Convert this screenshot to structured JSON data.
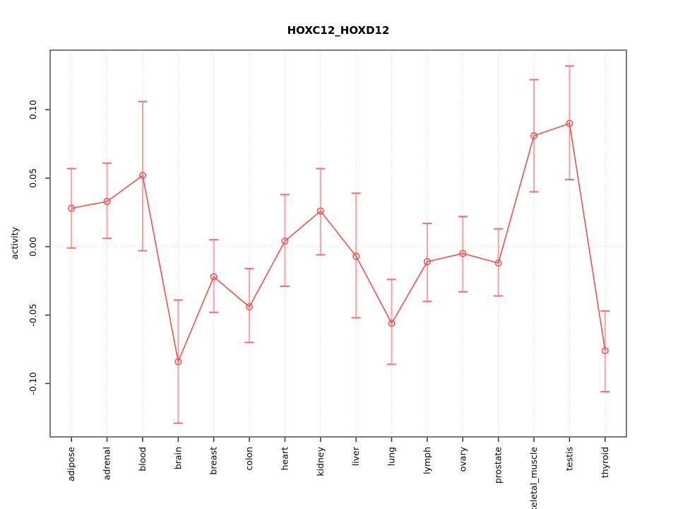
{
  "chart_data": {
    "type": "line",
    "title": "HOXC12_HOXD12",
    "xlabel": "",
    "ylabel": "activity",
    "categories": [
      "adipose",
      "adrenal",
      "blood",
      "brain",
      "breast",
      "colon",
      "heart",
      "kidney",
      "liver",
      "lung",
      "lymph",
      "ovary",
      "prostate",
      "skeletal_muscle",
      "testis",
      "thyroid"
    ],
    "series": [
      {
        "name": "activity",
        "values": [
          0.028,
          0.033,
          0.052,
          -0.084,
          -0.022,
          -0.044,
          0.004,
          0.026,
          -0.007,
          -0.056,
          -0.011,
          -0.005,
          -0.012,
          0.081,
          0.09,
          -0.076
        ],
        "upper": [
          0.057,
          0.061,
          0.106,
          -0.039,
          0.005,
          -0.016,
          0.038,
          0.057,
          0.039,
          -0.024,
          0.017,
          0.022,
          0.013,
          0.122,
          0.132,
          -0.047
        ],
        "lower": [
          -0.001,
          0.006,
          -0.003,
          -0.129,
          -0.048,
          -0.07,
          -0.029,
          -0.006,
          -0.052,
          -0.086,
          -0.04,
          -0.033,
          -0.036,
          0.04,
          0.049,
          -0.106
        ]
      }
    ],
    "yticks": [
      -0.1,
      -0.05,
      0.0,
      0.05,
      0.1
    ],
    "ytick_labels": [
      "-0.10",
      "-0.05",
      "0.00",
      "0.05",
      "0.10"
    ],
    "ylim": [
      -0.139,
      0.1435
    ],
    "xlim": [
      0.4,
      16.6
    ],
    "grid": "dotted vertical line at each category and dotted horizontal line at zero",
    "legend_position": "none",
    "marker": "open-circle with error bars",
    "colors": {
      "line": "#f2504f",
      "point": "#f2504f",
      "errorbar_stem": "#ff9f9f",
      "errorbar_cap": "#f76b6a",
      "grid": "#d6d6d6",
      "box": "#6b6b6b",
      "tick": "#333333",
      "text": "#000000"
    }
  }
}
